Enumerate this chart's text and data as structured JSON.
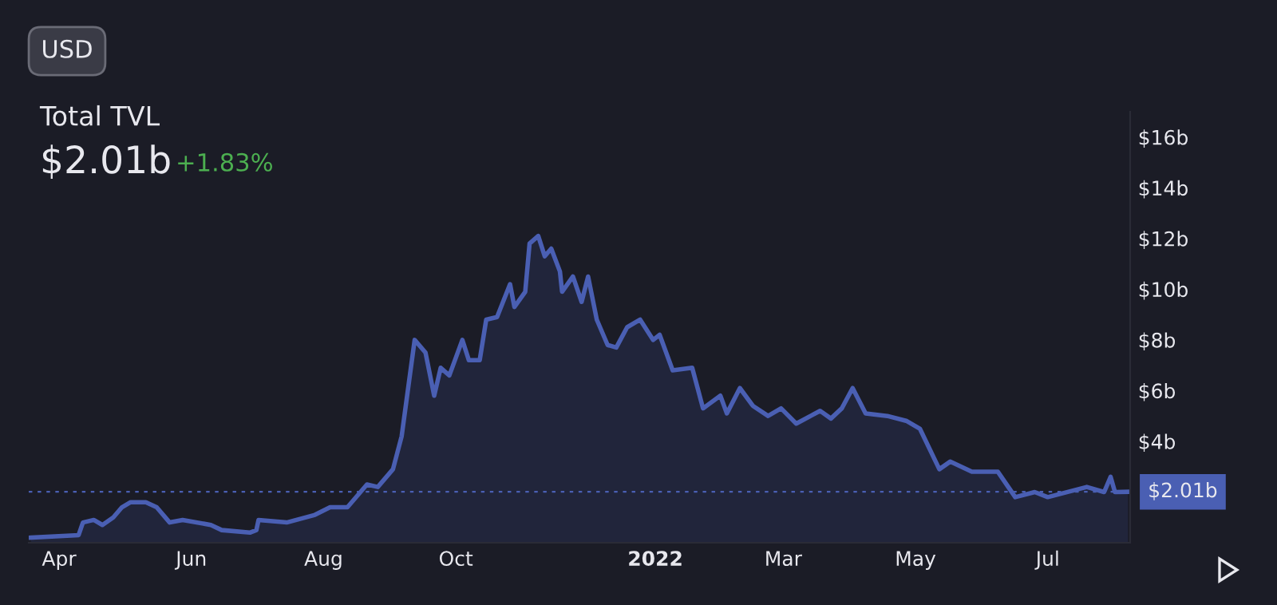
{
  "chart_data": {
    "type": "area",
    "title": "Total TVL",
    "subtitle": "$2.01b",
    "annotations": [
      "+1.83%",
      "USD"
    ],
    "x": [
      "2021-03-19",
      "2021-04-10",
      "2021-04-12",
      "2021-04-17",
      "2021-04-21",
      "2021-04-26",
      "2021-04-30",
      "2021-05-04",
      "2021-05-11",
      "2021-05-16",
      "2021-05-22",
      "2021-05-28",
      "2021-06-10",
      "2021-06-15",
      "2021-06-28",
      "2021-07-01",
      "2021-07-02",
      "2021-07-15",
      "2021-07-28",
      "2021-08-04",
      "2021-08-12",
      "2021-08-21",
      "2021-08-26",
      "2021-09-02",
      "2021-09-06",
      "2021-09-12",
      "2021-09-17",
      "2021-09-21",
      "2021-09-24",
      "2021-09-28",
      "2021-10-04",
      "2021-10-07",
      "2021-10-12",
      "2021-10-15",
      "2021-10-20",
      "2021-10-26",
      "2021-10-28",
      "2021-11-02",
      "2021-11-04",
      "2021-11-08",
      "2021-11-11",
      "2021-11-14",
      "2021-11-18",
      "2021-11-19",
      "2021-11-24",
      "2021-11-28",
      "2021-12-01",
      "2021-12-05",
      "2021-12-10",
      "2021-12-14",
      "2021-12-19",
      "2021-12-25",
      "2021-12-31",
      "2022-01-03",
      "2022-01-09",
      "2022-01-18",
      "2022-01-23",
      "2022-01-31",
      "2022-02-03",
      "2022-02-09",
      "2022-02-15",
      "2022-02-22",
      "2022-02-28",
      "2022-03-07",
      "2022-03-18",
      "2022-03-23",
      "2022-03-28",
      "2022-04-02",
      "2022-04-08",
      "2022-04-18",
      "2022-04-27",
      "2022-05-03",
      "2022-05-12",
      "2022-05-17",
      "2022-05-27",
      "2022-06-08",
      "2022-06-16",
      "2022-06-25",
      "2022-07-01",
      "2022-07-19",
      "2022-07-27",
      "2022-07-30",
      "2022-08-01",
      "2022-08-07"
    ],
    "series": [
      {
        "color": "#4a5fb3",
        "values": [
          0.2,
          0.3,
          0.8,
          0.9,
          0.7,
          1.0,
          1.4,
          1.6,
          1.6,
          1.4,
          0.8,
          0.9,
          0.7,
          0.5,
          0.4,
          0.5,
          0.9,
          0.8,
          1.1,
          1.4,
          1.4,
          2.3,
          2.2,
          2.9,
          4.2,
          8.0,
          7.5,
          5.8,
          6.9,
          6.6,
          8.0,
          7.2,
          7.2,
          8.8,
          8.9,
          10.2,
          9.3,
          9.9,
          11.8,
          12.1,
          11.3,
          11.6,
          10.7,
          9.9,
          10.5,
          9.5,
          10.5,
          8.8,
          7.8,
          7.7,
          8.5,
          8.8,
          8.0,
          8.2,
          6.8,
          6.9,
          5.3,
          5.8,
          5.1,
          6.1,
          5.4,
          5.0,
          5.3,
          4.7,
          5.2,
          4.9,
          5.3,
          6.1,
          5.1,
          5.0,
          4.8,
          4.5,
          2.9,
          3.2,
          2.8,
          2.8,
          1.8,
          2.0,
          1.8,
          2.2,
          2.0,
          2.6,
          2.0,
          2.01
        ]
      }
    ],
    "xlim": [
      "2021-03-18",
      "2022-08-08"
    ],
    "xticks": [
      {
        "value": "2021-04-01",
        "label": "Apr"
      },
      {
        "value": "2021-06-01",
        "label": "Jun"
      },
      {
        "value": "2021-08-01",
        "label": "Aug"
      },
      {
        "value": "2021-10-01",
        "label": "Oct"
      },
      {
        "value": "2022-01-01",
        "label": "2022"
      },
      {
        "value": "2022-03-01",
        "label": "Mar"
      },
      {
        "value": "2022-05-01",
        "label": "May"
      },
      {
        "value": "2022-07-01",
        "label": "Jul"
      }
    ],
    "ylim": [
      0,
      17
    ],
    "yticks": [
      {
        "value": 4,
        "label": "$4b"
      },
      {
        "value": 6,
        "label": "$6b"
      },
      {
        "value": 8,
        "label": "$8b"
      },
      {
        "value": 10,
        "label": "$10b"
      },
      {
        "value": 12,
        "label": "$12b"
      },
      {
        "value": 14,
        "label": "$14b"
      },
      {
        "value": 16,
        "label": "$16b"
      }
    ],
    "ref_lines": [
      {
        "axis": "y",
        "value": 2.01,
        "label": "$2.01b",
        "color": "#4a5fb3",
        "line_style": "dotted"
      }
    ],
    "grid": false,
    "legend": false
  }
}
